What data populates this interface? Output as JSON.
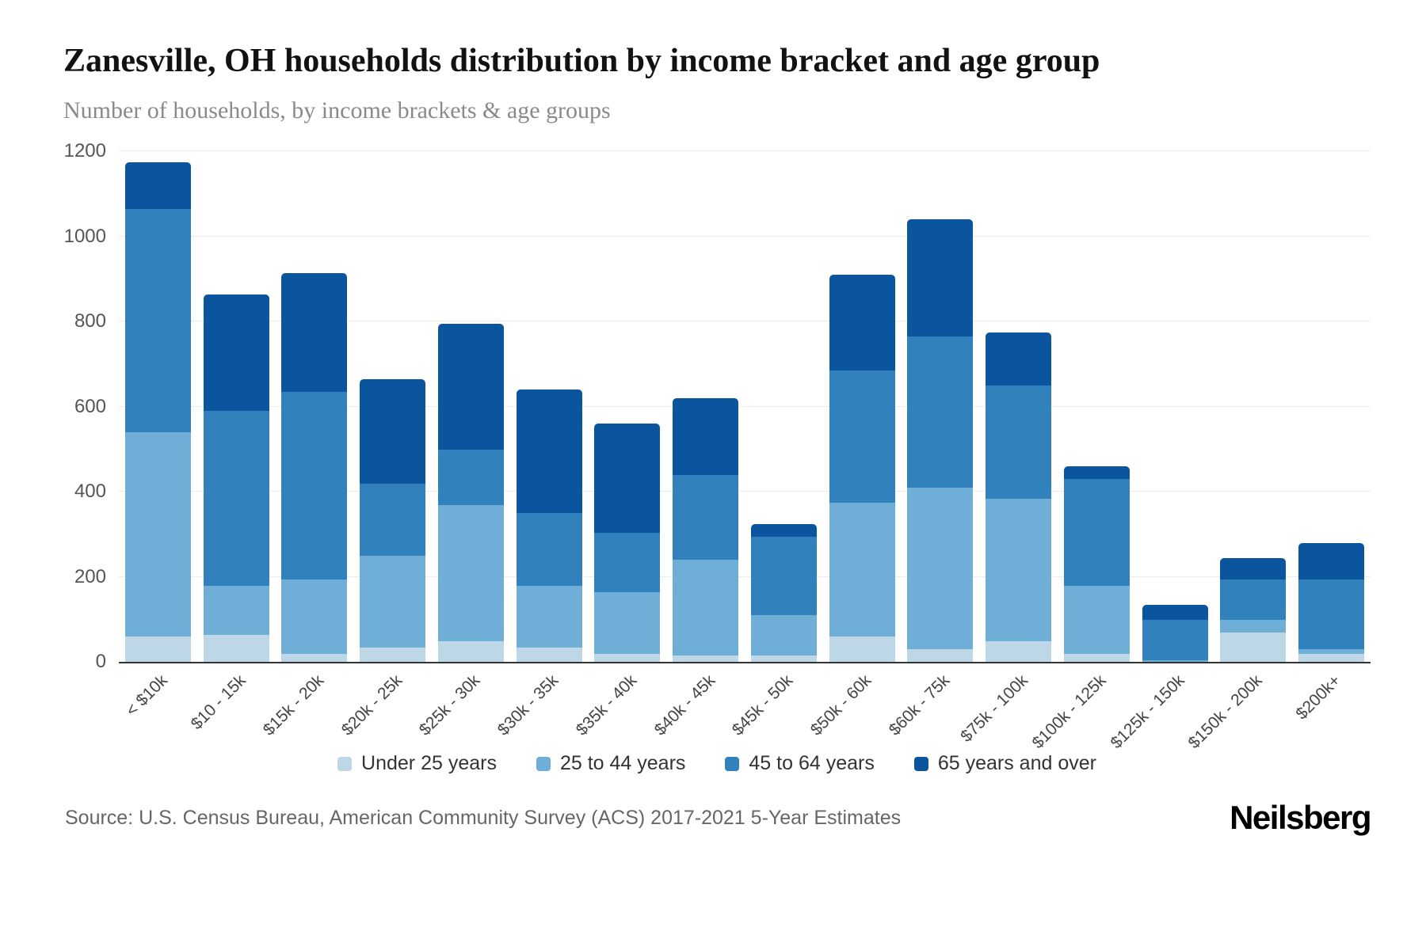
{
  "footer": {
    "source": "Source: U.S. Census Bureau, American Community Survey (ACS) 2017-2021 5-Year Estimates",
    "brand": "Neilsberg"
  },
  "chart_data": {
    "type": "bar",
    "stacked": true,
    "title": "Zanesville, OH households distribution by income bracket and age group",
    "subtitle": "Number of households, by income brackets & age groups",
    "xlabel": "",
    "ylabel": "Number of households",
    "ylim": [
      0,
      1200
    ],
    "yticks": [
      0,
      200,
      400,
      600,
      800,
      1000,
      1200
    ],
    "grid": true,
    "legend_position": "bottom",
    "categories": [
      "< $10k",
      "$10 - 15k",
      "$15k - 20k",
      "$20k - 25k",
      "$25k - 30k",
      "$30k - 35k",
      "$35k - 40k",
      "$40k - 45k",
      "$45k - 50k",
      "$50k - 60k",
      "$60k - 75k",
      "$75k - 100k",
      "$100k - 125k",
      "$125k - 150k",
      "$150k - 200k",
      "$200k+"
    ],
    "series": [
      {
        "name": "Under 25 years",
        "color": "#bdd7e7",
        "values": [
          60,
          65,
          20,
          35,
          50,
          35,
          20,
          15,
          15,
          60,
          30,
          50,
          20,
          0,
          70,
          20
        ]
      },
      {
        "name": "25 to 44 years",
        "color": "#6faed6",
        "values": [
          480,
          115,
          175,
          215,
          320,
          145,
          145,
          225,
          95,
          315,
          380,
          335,
          160,
          5,
          30,
          10
        ]
      },
      {
        "name": "45 to 64 years",
        "color": "#3181bd",
        "values": [
          525,
          410,
          440,
          170,
          130,
          170,
          140,
          200,
          185,
          310,
          355,
          265,
          250,
          95,
          95,
          165
        ]
      },
      {
        "name": "65 years and over",
        "color": "#0b559f",
        "values": [
          110,
          275,
          280,
          245,
          295,
          290,
          255,
          180,
          30,
          225,
          275,
          125,
          30,
          35,
          50,
          85
        ]
      }
    ]
  }
}
